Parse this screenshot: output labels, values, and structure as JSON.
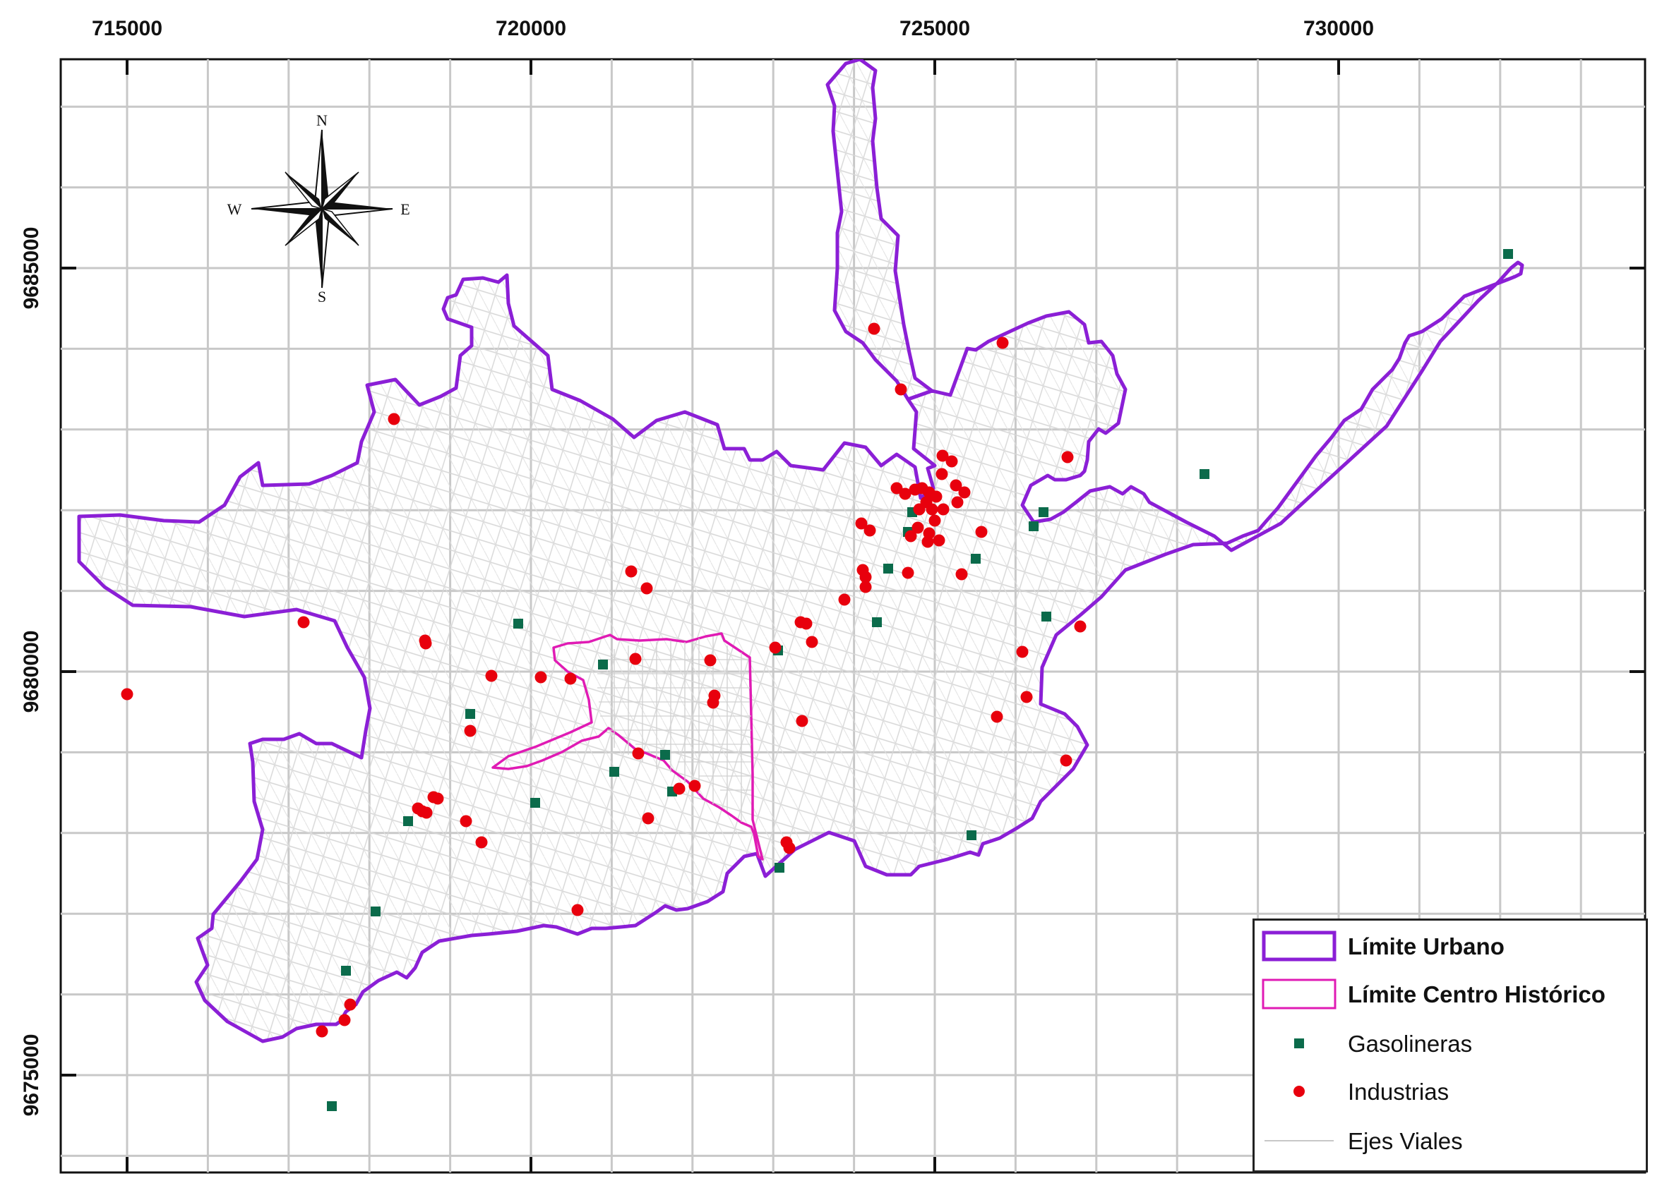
{
  "map": {
    "x_tick_labels": [
      "715000",
      "720000",
      "725000",
      "730000"
    ],
    "y_tick_labels": [
      "9685000",
      "9680000",
      "9675000"
    ],
    "compass": {
      "n": "N",
      "s": "S",
      "e": "E",
      "w": "W"
    }
  },
  "legend": {
    "items": [
      {
        "label": "Límite Urbano",
        "symbol": "outline-box",
        "color": "#8B1FD6"
      },
      {
        "label": "Límite Centro Histórico",
        "symbol": "outline-box",
        "color": "#E01BB4"
      },
      {
        "label": "Gasolineras",
        "symbol": "square-marker",
        "color": "#0B6B4B"
      },
      {
        "label": "Industrias",
        "symbol": "circle-marker",
        "color": "#E8000D"
      },
      {
        "label": "Ejes Viales",
        "symbol": "line",
        "color": "#C8C8C8"
      }
    ]
  },
  "colors": {
    "urban_limit": "#8B1FD6",
    "historic_center": "#E01BB4",
    "gas_stations": "#0B6B4B",
    "industries": "#E8000D",
    "roads": "#C8C8C8",
    "grid": "#C8C8C8"
  }
}
